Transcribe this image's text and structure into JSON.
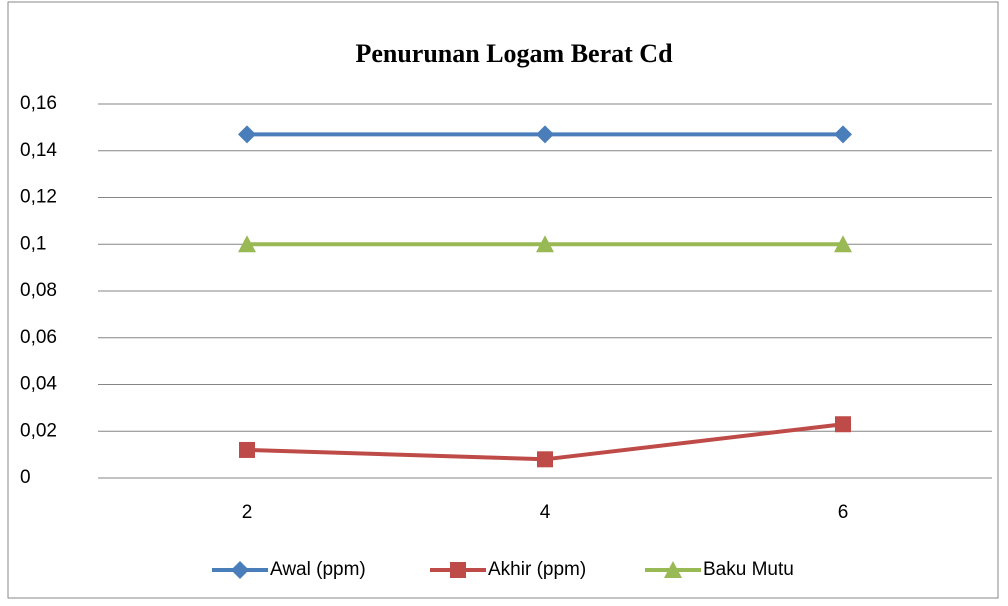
{
  "chart_data": {
    "type": "line",
    "title": "Penurunan Logam Berat Cd",
    "categories": [
      "2",
      "4",
      "6"
    ],
    "series": [
      {
        "name": "Awal (ppm)",
        "color": "#4a7ebb",
        "marker": "diamond",
        "values": [
          0.147,
          0.147,
          0.147
        ]
      },
      {
        "name": "Akhir (ppm)",
        "color": "#be4b48",
        "marker": "square",
        "values": [
          0.012,
          0.008,
          0.023
        ]
      },
      {
        "name": "Baku Mutu",
        "color": "#98b954",
        "marker": "triangle",
        "values": [
          0.1,
          0.1,
          0.1
        ]
      }
    ],
    "ylim": [
      0,
      0.16
    ],
    "yticks": [
      0,
      {
        "value": 0.02,
        "label": "0,02"
      },
      {
        "value": 0.04,
        "label": "0,04"
      },
      {
        "value": 0.06,
        "label": "0,06"
      },
      {
        "value": 0.08,
        "label": "0,08"
      },
      {
        "value": 0.1,
        "label": "0,1"
      },
      {
        "value": 0.12,
        "label": "0,12"
      },
      {
        "value": 0.14,
        "label": "0,14"
      },
      {
        "value": 0.16,
        "label": "0,16"
      }
    ],
    "grid": true,
    "legend": "bottom"
  }
}
